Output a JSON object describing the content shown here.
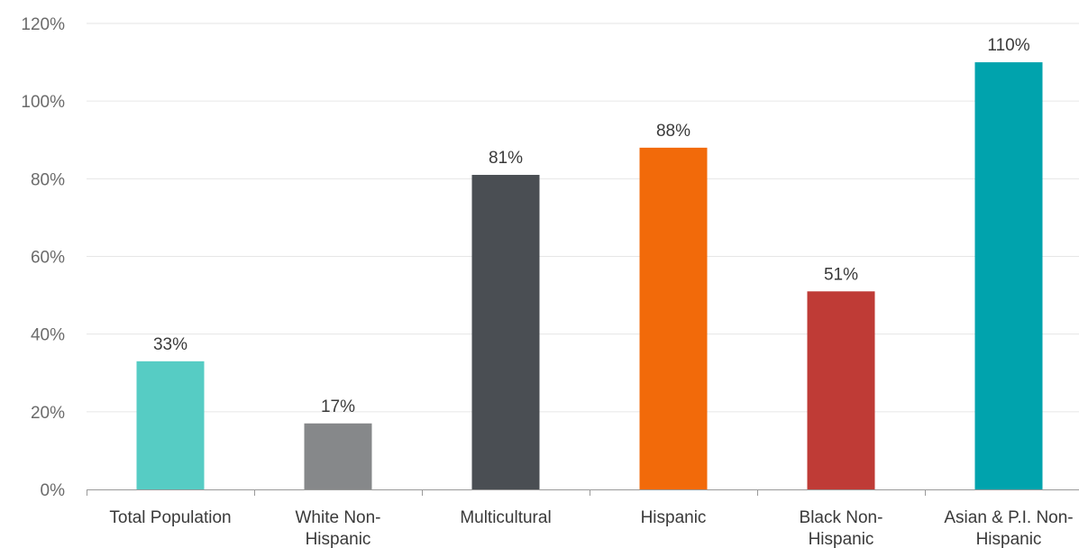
{
  "chart_data": {
    "type": "bar",
    "title": "",
    "xlabel": "",
    "ylabel": "",
    "categories": [
      [
        "Total Population"
      ],
      [
        "White Non-",
        "Hispanic"
      ],
      [
        "Multicultural"
      ],
      [
        "Hispanic"
      ],
      [
        "Black Non-",
        "Hispanic"
      ],
      [
        "Asian & P.I. Non-",
        "Hispanic"
      ]
    ],
    "values": [
      33,
      17,
      81,
      88,
      51,
      110
    ],
    "data_labels": [
      "33%",
      "17%",
      "81%",
      "88%",
      "51%",
      "110%"
    ],
    "colors": [
      "#56CCC4",
      "#86888A",
      "#4A4E53",
      "#F26A0A",
      "#BF3B36",
      "#00A3AD"
    ],
    "ylim": [
      0,
      120
    ],
    "yticks": [
      0,
      20,
      40,
      60,
      80,
      100,
      120
    ],
    "ytick_labels": [
      "0%",
      "20%",
      "40%",
      "60%",
      "80%",
      "100%",
      "120%"
    ],
    "grid": true,
    "legend": "none"
  }
}
